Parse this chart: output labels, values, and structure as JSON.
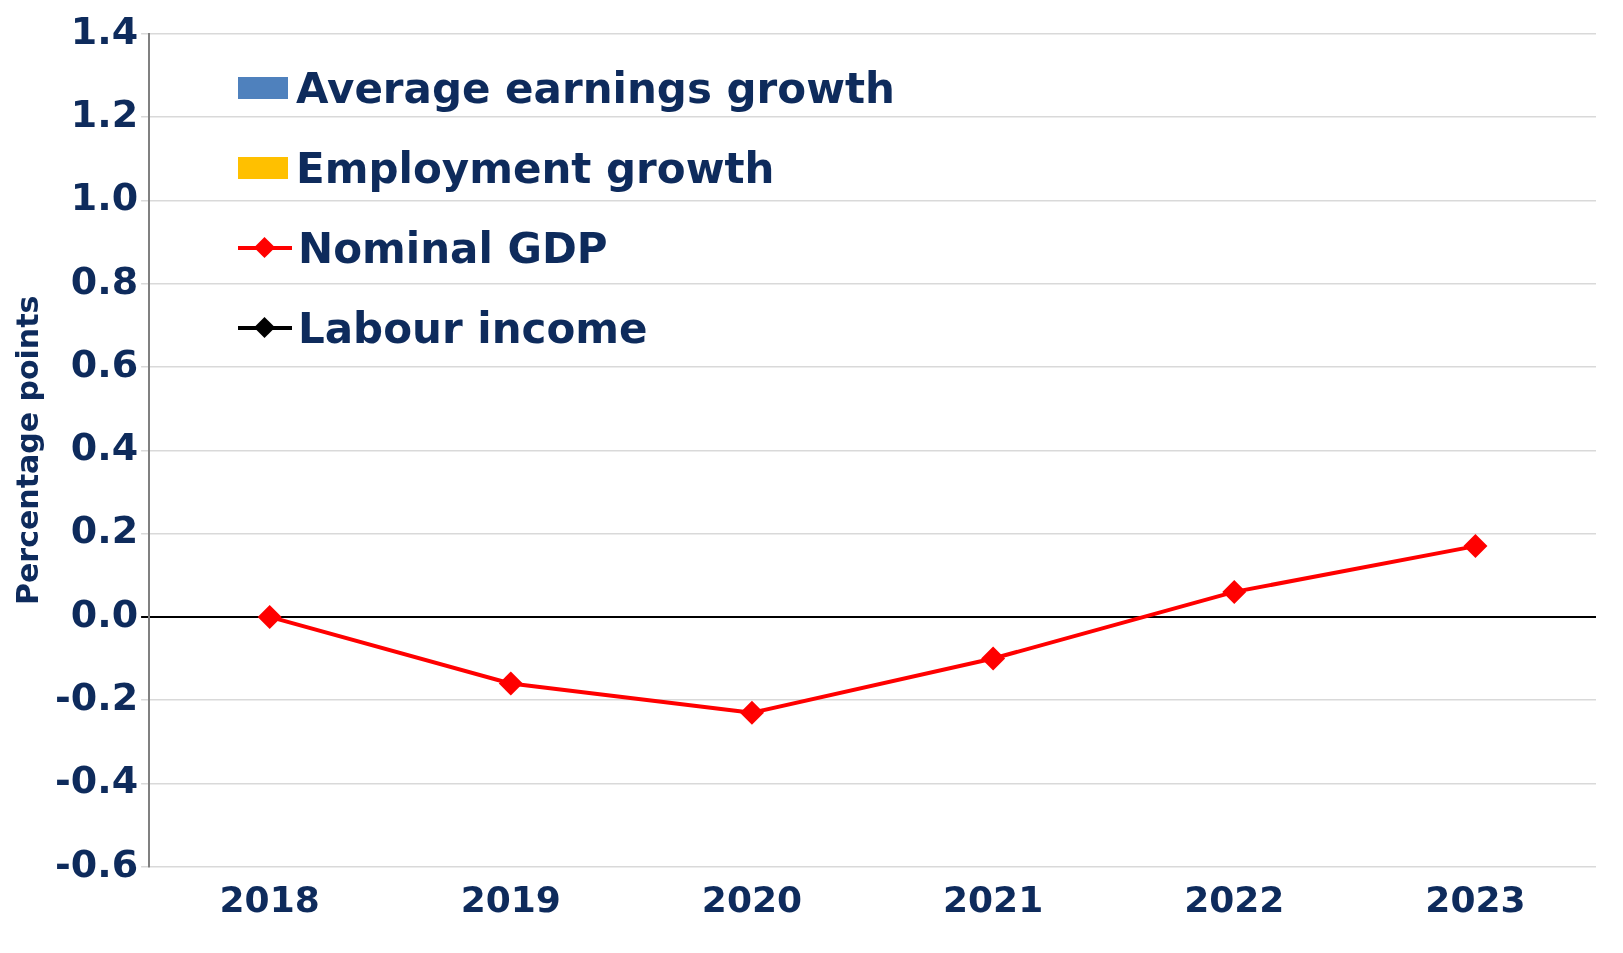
{
  "chart_data": {
    "type": "line",
    "ylabel": "Percentage points",
    "categories": [
      "2018",
      "2019",
      "2020",
      "2021",
      "2022",
      "2023"
    ],
    "series": [
      {
        "name": "Average earnings growth",
        "type": "bar",
        "color": "#4f81bd",
        "values": [
          null,
          null,
          null,
          null,
          null,
          null
        ]
      },
      {
        "name": "Employment growth",
        "type": "bar",
        "color": "#ffc000",
        "values": [
          null,
          null,
          null,
          null,
          null,
          null
        ]
      },
      {
        "name": "Nominal GDP",
        "color": "#ff0000",
        "values": [
          0,
          -0.16,
          -0.23,
          -0.1,
          0.06,
          0.17
        ]
      },
      {
        "name": "Labour income",
        "color": "#000000",
        "values": [
          null,
          null,
          null,
          null,
          null,
          null
        ]
      }
    ],
    "ylim": [
      -0.6,
      1.4
    ],
    "yticks": [
      -0.6,
      -0.4,
      -0.2,
      {
        "value": 0,
        "label": "0.0"
      },
      0.2,
      0.4,
      0.6,
      0.8,
      {
        "value": 1,
        "label": "1.0"
      },
      1.2,
      1.4
    ],
    "grid": "y",
    "legend": "top left",
    "marker": "diamond",
    "line_style": "solid"
  }
}
